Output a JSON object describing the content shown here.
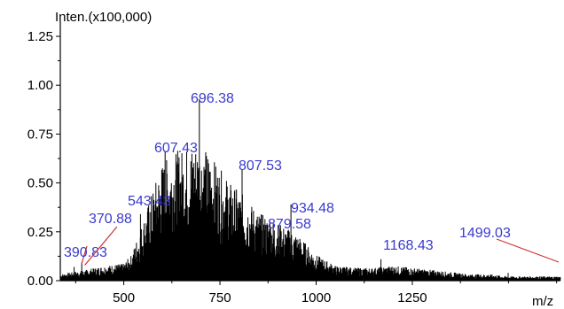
{
  "chart_data": {
    "type": "spectrum",
    "ylabel": "Inten.(x100,000)",
    "xlabel": "m/z",
    "xlim": [
      335,
      1635
    ],
    "ylim": [
      0,
      1.3
    ],
    "xticks": [
      500,
      750,
      1000,
      1250
    ],
    "yticks": [
      0.0,
      0.25,
      0.5,
      0.75,
      1.0,
      1.25
    ],
    "ytick_labels": [
      "0.00",
      "0.25",
      "0.50",
      "0.75",
      "1.00",
      "1.25"
    ],
    "xtick_labels": [
      "500",
      "750",
      "1000",
      "1250"
    ],
    "peak_color": "#000000",
    "label_color": "#3a3acf",
    "leader_color": "#d03030",
    "envelope": [
      [
        335,
        0.03
      ],
      [
        400,
        0.05
      ],
      [
        450,
        0.07
      ],
      [
        500,
        0.08
      ],
      [
        520,
        0.12
      ],
      [
        550,
        0.28
      ],
      [
        580,
        0.45
      ],
      [
        600,
        0.55
      ],
      [
        630,
        0.6
      ],
      [
        660,
        0.62
      ],
      [
        690,
        0.65
      ],
      [
        720,
        0.6
      ],
      [
        750,
        0.52
      ],
      [
        780,
        0.45
      ],
      [
        810,
        0.4
      ],
      [
        850,
        0.32
      ],
      [
        900,
        0.27
      ],
      [
        950,
        0.22
      ],
      [
        1000,
        0.12
      ],
      [
        1050,
        0.07
      ],
      [
        1100,
        0.06
      ],
      [
        1150,
        0.06
      ],
      [
        1200,
        0.07
      ],
      [
        1250,
        0.06
      ],
      [
        1300,
        0.05
      ],
      [
        1350,
        0.04
      ],
      [
        1400,
        0.03
      ],
      [
        1450,
        0.03
      ],
      [
        1500,
        0.02
      ],
      [
        1635,
        0.02
      ]
    ],
    "peaks": [
      {
        "label": "390.83",
        "mz": 390.83,
        "y": 0.09
      },
      {
        "label": "370.88",
        "mz": 370.88,
        "y": 0.07
      },
      {
        "label": "543.43",
        "mz": 543.43,
        "y": 0.34
      },
      {
        "label": "607.43",
        "mz": 607.43,
        "y": 0.66
      },
      {
        "label": "696.38",
        "mz": 696.38,
        "y": 0.93
      },
      {
        "label": "807.53",
        "mz": 807.53,
        "y": 0.57
      },
      {
        "label": "879.58",
        "mz": 879.58,
        "y": 0.3
      },
      {
        "label": "934.48",
        "mz": 934.48,
        "y": 0.39
      },
      {
        "label": "1168.43",
        "mz": 1168.43,
        "y": 0.11
      },
      {
        "label": "1499.03",
        "mz": 1499.03,
        "y": 0.04
      }
    ]
  }
}
